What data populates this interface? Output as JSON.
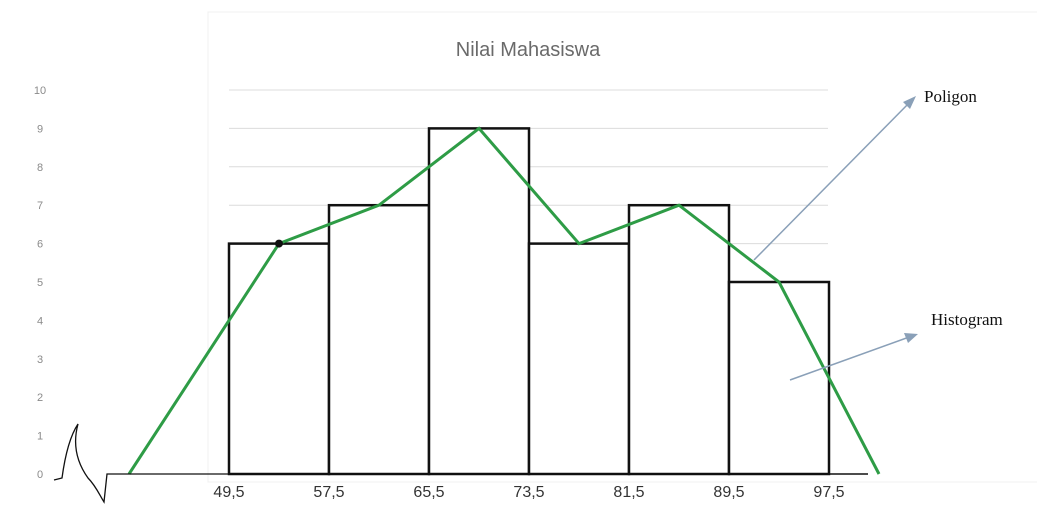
{
  "chart_data": {
    "type": "bar",
    "title": "Nilai Mahasiswa",
    "bin_edges": [
      49.5,
      57.5,
      65.5,
      73.5,
      81.5,
      89.5,
      97.5
    ],
    "bins": [
      "49.5-57.5",
      "57.5-65.5",
      "65.5-73.5",
      "73.5-81.5",
      "81.5-89.5",
      "89.5-97.5"
    ],
    "values": [
      6,
      7,
      9,
      6,
      7,
      5
    ],
    "x_tick_labels": [
      "49,5",
      "57,5",
      "65,5",
      "73,5",
      "81,5",
      "89,5",
      "97,5"
    ],
    "y_ticks": [
      0,
      1,
      2,
      3,
      4,
      5,
      6,
      7,
      8,
      9,
      10
    ],
    "ylim": [
      0,
      10
    ],
    "grid": true,
    "series": [
      {
        "name": "Histogram",
        "type": "bar",
        "values": [
          6,
          7,
          9,
          6,
          7,
          5
        ]
      },
      {
        "name": "Poligon",
        "type": "line",
        "x": [
          41.5,
          53.5,
          61.5,
          69.5,
          77.5,
          85.5,
          93.5,
          101.5
        ],
        "y": [
          0,
          6,
          7,
          9,
          6,
          7,
          5,
          0
        ]
      }
    ],
    "annotations": [
      {
        "text": "Poligon",
        "points_to": "polygon line"
      },
      {
        "text": "Histogram",
        "points_to": "histogram bars"
      }
    ],
    "colors": {
      "polygon": "#2e9c46",
      "bars": "#111111",
      "grid": "#dcdcdc",
      "arrow": "#8aa0b8"
    }
  }
}
